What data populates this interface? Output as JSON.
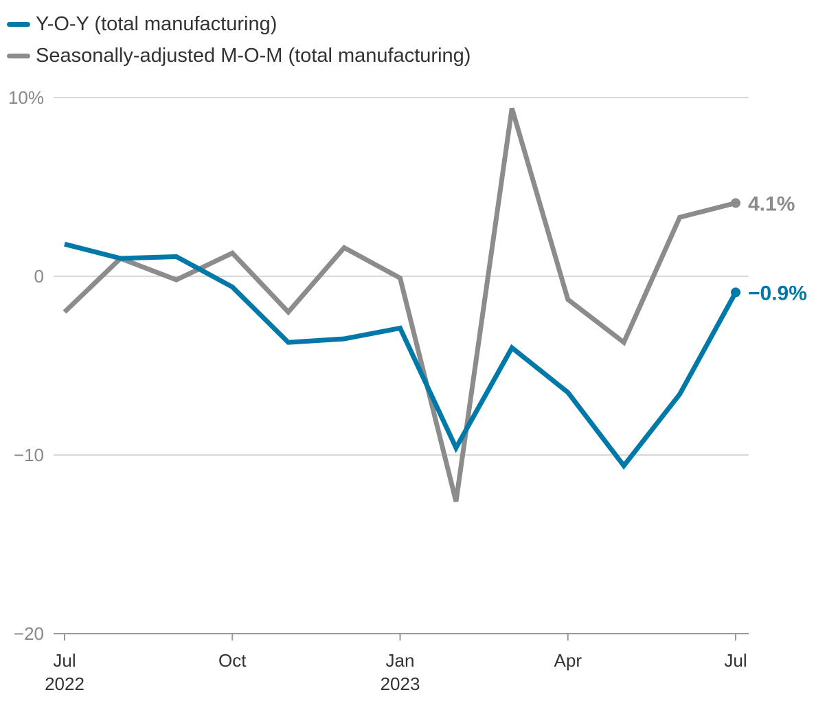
{
  "chart_data": {
    "type": "line",
    "title": "",
    "xlabel": "",
    "ylabel": "",
    "ylim": [
      -20,
      10
    ],
    "y_ticks": [
      {
        "value": 10,
        "label": "10%"
      },
      {
        "value": 0,
        "label": "0"
      },
      {
        "value": -10,
        "label": "−10"
      },
      {
        "value": -20,
        "label": "−20"
      }
    ],
    "x": [
      "Jul 2022",
      "Aug 2022",
      "Sep 2022",
      "Oct 2022",
      "Nov 2022",
      "Dec 2022",
      "Jan 2023",
      "Feb 2023",
      "Mar 2023",
      "Apr 2023",
      "May 2023",
      "Jun 2023",
      "Jul 2023"
    ],
    "x_ticks": [
      {
        "index": 0,
        "line1": "Jul",
        "line2": "2022"
      },
      {
        "index": 3,
        "line1": "Oct",
        "line2": ""
      },
      {
        "index": 6,
        "line1": "Jan",
        "line2": "2023"
      },
      {
        "index": 9,
        "line1": "Apr",
        "line2": ""
      },
      {
        "index": 12,
        "line1": "Jul",
        "line2": ""
      }
    ],
    "series": [
      {
        "name": "Y-O-Y (total manufacturing)",
        "color": "#0079a8",
        "values": [
          1.8,
          1.0,
          1.1,
          -0.6,
          -3.7,
          -3.5,
          -2.9,
          -9.6,
          -4.0,
          -6.5,
          -10.6,
          -6.6,
          -0.9
        ],
        "end_label": "−0.9%"
      },
      {
        "name": "Seasonally-adjusted M-O-M (total manufacturing)",
        "color": "#8c8c8c",
        "values": [
          -2.0,
          1.0,
          -0.2,
          1.3,
          -2.0,
          1.6,
          -0.1,
          -12.6,
          9.4,
          -1.3,
          -3.7,
          3.3,
          4.1
        ],
        "end_label": "4.1%"
      }
    ]
  }
}
